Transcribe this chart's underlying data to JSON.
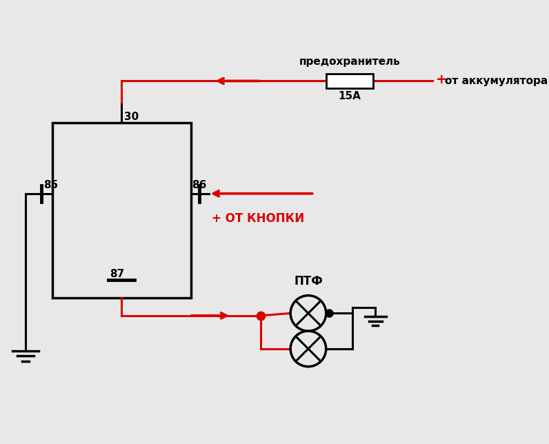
{
  "bg_color": "#e8e8e8",
  "red": "#dd0000",
  "black": "#000000",
  "fuse_label": "предохранитель",
  "fuse_rating": "15А",
  "battery_label": "от аккумулятора",
  "button_label": "ОТ КНОПКИ",
  "ptf_label": "ПТФ",
  "pin30": "30",
  "pin85": "85",
  "pin86": "86",
  "pin87": "87"
}
